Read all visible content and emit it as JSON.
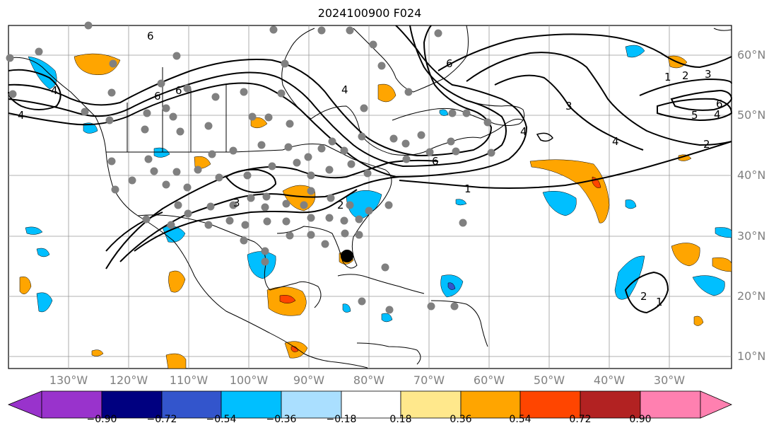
{
  "map": {
    "title": "2024100900 F024",
    "lat_labels": [
      "60°N",
      "50°N",
      "40°N",
      "30°N",
      "20°N",
      "10°N"
    ],
    "lon_labels": [
      "130°W",
      "120°W",
      "110°W",
      "100°W",
      "90°W",
      "80°W",
      "70°W",
      "60°W",
      "50°W",
      "40°W",
      "30°W"
    ],
    "contour_labels": [
      "6",
      "6",
      "4",
      "4",
      "6",
      "4",
      "6",
      "1",
      "2",
      "3",
      "6",
      "5",
      "4",
      "2",
      "4",
      "3",
      "6",
      "1",
      "3",
      "2",
      "1",
      "2",
      "4"
    ],
    "marker": "black-dot"
  },
  "colorbar": {
    "tick_labels": [
      "−0.90",
      "−0.72",
      "−0.54",
      "−0.36",
      "−0.18",
      "0.18",
      "0.36",
      "0.54",
      "0.72",
      "0.90"
    ],
    "colors": [
      "#9933cc",
      "#000080",
      "#3355cc",
      "#00bfff",
      "#aadfff",
      "#ffffff",
      "#ffe88c",
      "#ffa500",
      "#ff4500",
      "#b22222",
      "#ff80b0"
    ]
  }
}
